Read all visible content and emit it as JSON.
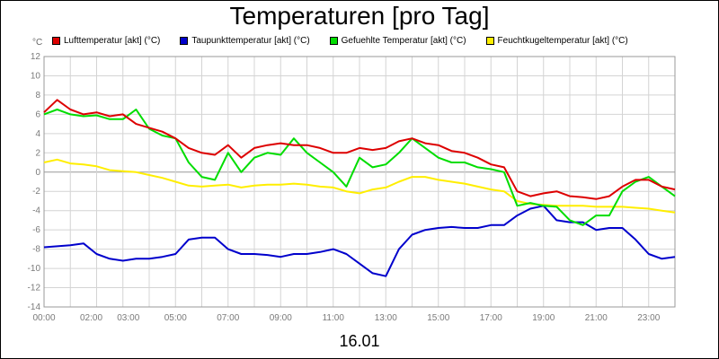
{
  "title": "Temperaturen [pro Tag]",
  "unit_label": "°C",
  "date_label": "16.01",
  "legend": [
    {
      "name": "Lufttemperatur [akt] (°C)",
      "color": "#dd0000"
    },
    {
      "name": "Taupunkttemperatur [akt] (°C)",
      "color": "#0000cc"
    },
    {
      "name": "Gefuehlte Temperatur [akt] (°C)",
      "color": "#00dd00"
    },
    {
      "name": "Feuchtkugeltemperatur [akt] (°C)",
      "color": "#ffee00"
    }
  ],
  "chart_data": {
    "type": "line",
    "ylim": [
      -14,
      12
    ],
    "xlim": [
      0,
      24
    ],
    "grid": true,
    "legend_position": "top",
    "y_ticks": [
      "12",
      "10",
      "8",
      "6",
      "4",
      "2",
      "0",
      "-2",
      "-4",
      "-6",
      "-8",
      "-10",
      "-12",
      "-14"
    ],
    "x_ticks": [
      {
        "label": "00:00",
        "x": 0
      },
      {
        "label": "02:00",
        "x": 2
      },
      {
        "label": "03:00",
        "x": 3
      },
      {
        "label": "05:00",
        "x": 5
      },
      {
        "label": "07:00",
        "x": 7
      },
      {
        "label": "09:00",
        "x": 9
      },
      {
        "label": "11:00",
        "x": 11
      },
      {
        "label": "13:00",
        "x": 13
      },
      {
        "label": "15:00",
        "x": 15
      },
      {
        "label": "17:00",
        "x": 17
      },
      {
        "label": "19:00",
        "x": 19
      },
      {
        "label": "21:00",
        "x": 21
      },
      {
        "label": "23:00",
        "x": 23
      }
    ],
    "x": [
      0,
      0.5,
      1,
      1.5,
      2,
      2.5,
      3,
      3.5,
      4,
      4.5,
      5,
      5.5,
      6,
      6.5,
      7,
      7.5,
      8,
      8.5,
      9,
      9.5,
      10,
      10.5,
      11,
      11.5,
      12,
      12.5,
      13,
      13.5,
      14,
      14.5,
      15,
      15.5,
      16,
      16.5,
      17,
      17.5,
      18,
      18.5,
      19,
      19.5,
      20,
      20.5,
      21,
      21.5,
      22,
      22.5,
      23,
      23.5,
      24
    ],
    "series": [
      {
        "name": "Lufttemperatur [akt] (°C)",
        "color": "#dd0000",
        "values": [
          6.2,
          7.5,
          6.5,
          6.0,
          6.2,
          5.8,
          6.0,
          5.0,
          4.6,
          4.2,
          3.5,
          2.5,
          2.0,
          1.8,
          2.8,
          1.5,
          2.5,
          2.8,
          3.0,
          2.8,
          2.8,
          2.5,
          2.0,
          2.0,
          2.5,
          2.3,
          2.5,
          3.2,
          3.5,
          3.0,
          2.8,
          2.2,
          2.0,
          1.5,
          0.8,
          0.5,
          -2.0,
          -2.5,
          -2.2,
          -2.0,
          -2.5,
          -2.6,
          -2.8,
          -2.5,
          -1.5,
          -0.8,
          -0.8,
          -1.5,
          -1.8
        ]
      },
      {
        "name": "Taupunkttemperatur [akt] (°C)",
        "color": "#0000cc",
        "values": [
          -7.8,
          -7.7,
          -7.6,
          -7.4,
          -8.5,
          -9.0,
          -9.2,
          -9.0,
          -9.0,
          -8.8,
          -8.5,
          -7.0,
          -6.8,
          -6.8,
          -8.0,
          -8.5,
          -8.5,
          -8.6,
          -8.8,
          -8.5,
          -8.5,
          -8.3,
          -8.0,
          -8.5,
          -9.5,
          -10.5,
          -10.8,
          -8.0,
          -6.5,
          -6.0,
          -5.8,
          -5.7,
          -5.8,
          -5.8,
          -5.5,
          -5.5,
          -4.5,
          -3.8,
          -3.5,
          -5.0,
          -5.2,
          -5.2,
          -6.0,
          -5.8,
          -5.8,
          -7.0,
          -8.5,
          -9.0,
          -8.8
        ]
      },
      {
        "name": "Gefuehlte Temperatur [akt] (°C)",
        "color": "#00dd00",
        "values": [
          6.0,
          6.5,
          6.0,
          5.8,
          5.9,
          5.5,
          5.5,
          6.5,
          4.5,
          3.8,
          3.5,
          1.0,
          -0.5,
          -0.8,
          2.0,
          0.0,
          1.5,
          2.0,
          1.8,
          3.5,
          2.0,
          1.0,
          0.0,
          -1.5,
          1.5,
          0.5,
          0.8,
          2.0,
          3.5,
          2.5,
          1.5,
          1.0,
          1.0,
          0.5,
          0.3,
          0.0,
          -3.5,
          -3.2,
          -3.5,
          -3.6,
          -5.0,
          -5.5,
          -4.5,
          -4.5,
          -2.0,
          -1.0,
          -0.5,
          -1.5,
          -2.5
        ]
      },
      {
        "name": "Feuchtkugeltemperatur [akt] (°C)",
        "color": "#ffee00",
        "values": [
          1.0,
          1.3,
          0.9,
          0.8,
          0.6,
          0.2,
          0.1,
          0.0,
          -0.3,
          -0.6,
          -1.0,
          -1.4,
          -1.5,
          -1.4,
          -1.3,
          -1.6,
          -1.4,
          -1.3,
          -1.3,
          -1.2,
          -1.3,
          -1.5,
          -1.6,
          -2.0,
          -2.2,
          -1.8,
          -1.6,
          -1.0,
          -0.5,
          -0.5,
          -0.8,
          -1.0,
          -1.2,
          -1.5,
          -1.8,
          -2.0,
          -3.0,
          -3.3,
          -3.4,
          -3.5,
          -3.5,
          -3.5,
          -3.6,
          -3.6,
          -3.6,
          -3.7,
          -3.8,
          -4.0,
          -4.2
        ]
      }
    ]
  }
}
